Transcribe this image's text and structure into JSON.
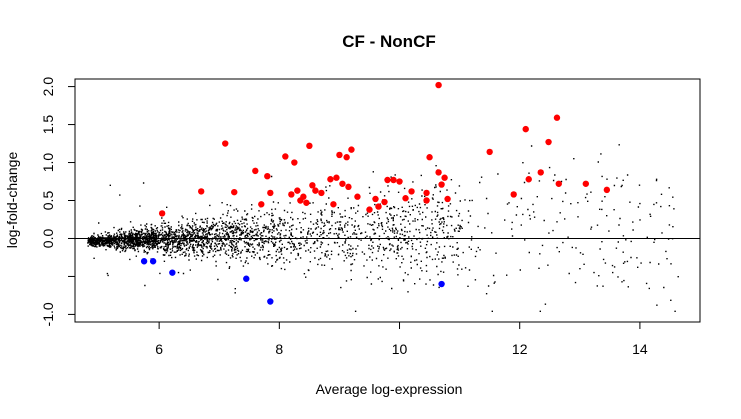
{
  "chart_data": {
    "type": "scatter",
    "title": "CF - NonCF",
    "xlabel": "Average log-expression",
    "ylabel": "log-fold-change",
    "xlim": [
      4.6,
      15.0
    ],
    "ylim": [
      -1.1,
      2.1
    ],
    "x_ticks": [
      6,
      8,
      10,
      12,
      14
    ],
    "y_ticks": [
      2.0,
      1.5,
      1.0,
      0.5,
      0.0,
      -0.5,
      -1.0
    ],
    "y_tick_labels": [
      "2.0",
      "1.5",
      "1.0",
      "0.5",
      "0.0",
      "",
      "-1.0"
    ],
    "hline": 0,
    "grid": false,
    "colors": {
      "up": "#ff0000",
      "down": "#0000ff",
      "background": "#000000"
    },
    "series": [
      {
        "color": "#ff0000",
        "points": [
          [
            10.65,
            2.02
          ],
          [
            12.62,
            1.59
          ],
          [
            12.1,
            1.44
          ],
          [
            12.48,
            1.27
          ],
          [
            7.1,
            1.25
          ],
          [
            8.5,
            1.22
          ],
          [
            11.5,
            1.14
          ],
          [
            9.2,
            1.17
          ],
          [
            10.5,
            1.07
          ],
          [
            8.1,
            1.08
          ],
          [
            9.12,
            1.07
          ],
          [
            8.25,
            1.0
          ],
          [
            9.0,
            1.1
          ],
          [
            12.35,
            0.87
          ],
          [
            12.15,
            0.78
          ],
          [
            7.6,
            0.89
          ],
          [
            10.65,
            0.87
          ],
          [
            8.95,
            0.8
          ],
          [
            10.75,
            0.8
          ],
          [
            13.1,
            0.72
          ],
          [
            9.9,
            0.77
          ],
          [
            12.65,
            0.72
          ],
          [
            7.8,
            0.82
          ],
          [
            6.7,
            0.62
          ],
          [
            7.25,
            0.61
          ],
          [
            8.3,
            0.63
          ],
          [
            8.6,
            0.63
          ],
          [
            10.7,
            0.71
          ],
          [
            8.85,
            0.78
          ],
          [
            9.05,
            0.72
          ],
          [
            9.8,
            0.77
          ],
          [
            7.85,
            0.6
          ],
          [
            13.45,
            0.64
          ],
          [
            8.4,
            0.55
          ],
          [
            8.7,
            0.6
          ],
          [
            9.15,
            0.68
          ],
          [
            10.0,
            0.75
          ],
          [
            11.9,
            0.58
          ],
          [
            9.6,
            0.52
          ],
          [
            10.45,
            0.5
          ],
          [
            10.8,
            0.52
          ],
          [
            8.45,
            0.47
          ],
          [
            7.7,
            0.45
          ],
          [
            9.5,
            0.38
          ],
          [
            9.75,
            0.48
          ],
          [
            10.1,
            0.53
          ],
          [
            8.35,
            0.5
          ],
          [
            6.05,
            0.33
          ],
          [
            8.2,
            0.58
          ],
          [
            8.55,
            0.7
          ],
          [
            9.3,
            0.55
          ],
          [
            10.2,
            0.62
          ],
          [
            10.45,
            0.6
          ],
          [
            8.9,
            0.45
          ],
          [
            9.65,
            0.42
          ]
        ]
      },
      {
        "color": "#0000ff",
        "points": [
          [
            5.75,
            -0.3
          ],
          [
            5.9,
            -0.3
          ],
          [
            6.22,
            -0.45
          ],
          [
            7.45,
            -0.53
          ],
          [
            7.85,
            -0.83
          ],
          [
            10.7,
            -0.6
          ]
        ]
      }
    ]
  }
}
